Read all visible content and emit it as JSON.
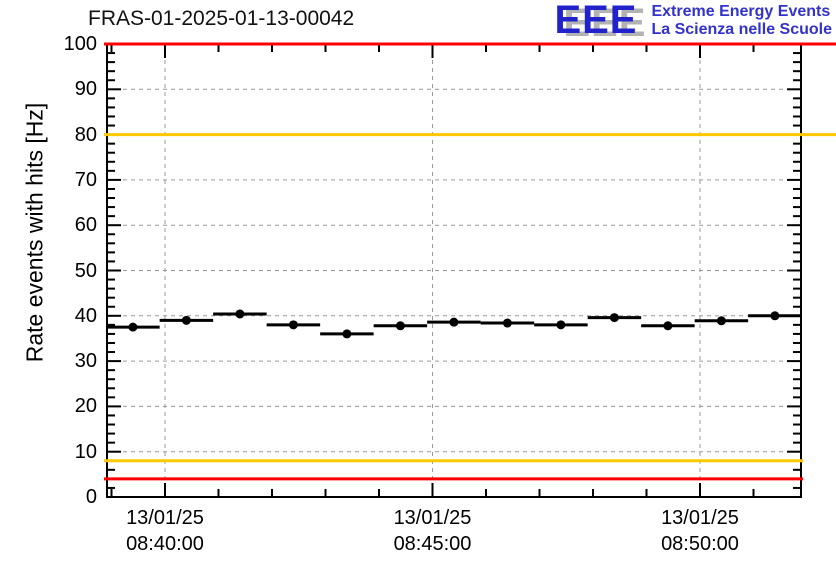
{
  "header": {
    "title": "FRAS-01-2025-01-13-00042",
    "logo": {
      "acronym": "EEE",
      "line1": "Extreme Energy Events",
      "line2": "La Scienza nelle Scuole"
    }
  },
  "colors": {
    "alarm_red": "#ff0000",
    "warning_yellow": "#ffc800",
    "logo_blue": "#2222cc",
    "grid_gray": "#999999",
    "data_black": "#000000"
  },
  "chart_data": {
    "type": "scatter",
    "title": "FRAS-01-2025-01-13-00042",
    "xlabel": "",
    "ylabel": "Rate events with hits [Hz]",
    "ylim": [
      0,
      100
    ],
    "y_major_tick_step": 10,
    "y_minor_tick_step": 2,
    "grid": true,
    "legend": "none",
    "x_axis_unit": "minutes relative to 08:40:00",
    "xlim_minutes": [
      -1.08,
      11.9
    ],
    "x_major_tick_minutes": [
      0,
      5,
      10
    ],
    "x_minor_tick_step_minutes": 1,
    "x_tick_labels": [
      {
        "date": "13/01/25",
        "time": "08:40:00"
      },
      {
        "date": "13/01/25",
        "time": "08:45:00"
      },
      {
        "date": "13/01/25",
        "time": "08:50:00"
      }
    ],
    "series": [
      {
        "name": "rate-events-with-hits",
        "marker": "filled-circle",
        "color": "#000000",
        "bin_width_minutes": 1,
        "xerr_minutes": 0.5,
        "x_minutes": [
          -0.6,
          0.4,
          1.4,
          2.4,
          3.4,
          4.4,
          5.4,
          6.4,
          7.4,
          8.4,
          9.4,
          10.4,
          11.4
        ],
        "values": [
          37.5,
          39.0,
          40.4,
          38.0,
          36.0,
          37.8,
          38.6,
          38.4,
          38.0,
          39.6,
          37.8,
          38.9,
          40.0
        ]
      }
    ],
    "threshold_lines": [
      {
        "value": 100,
        "color": "#ff0000",
        "role": "alarm-high"
      },
      {
        "value": 80,
        "color": "#ffc800",
        "role": "warning-high"
      },
      {
        "value": 8,
        "color": "#ffc800",
        "role": "warning-low"
      },
      {
        "value": 4,
        "color": "#ff0000",
        "role": "alarm-low"
      }
    ]
  }
}
